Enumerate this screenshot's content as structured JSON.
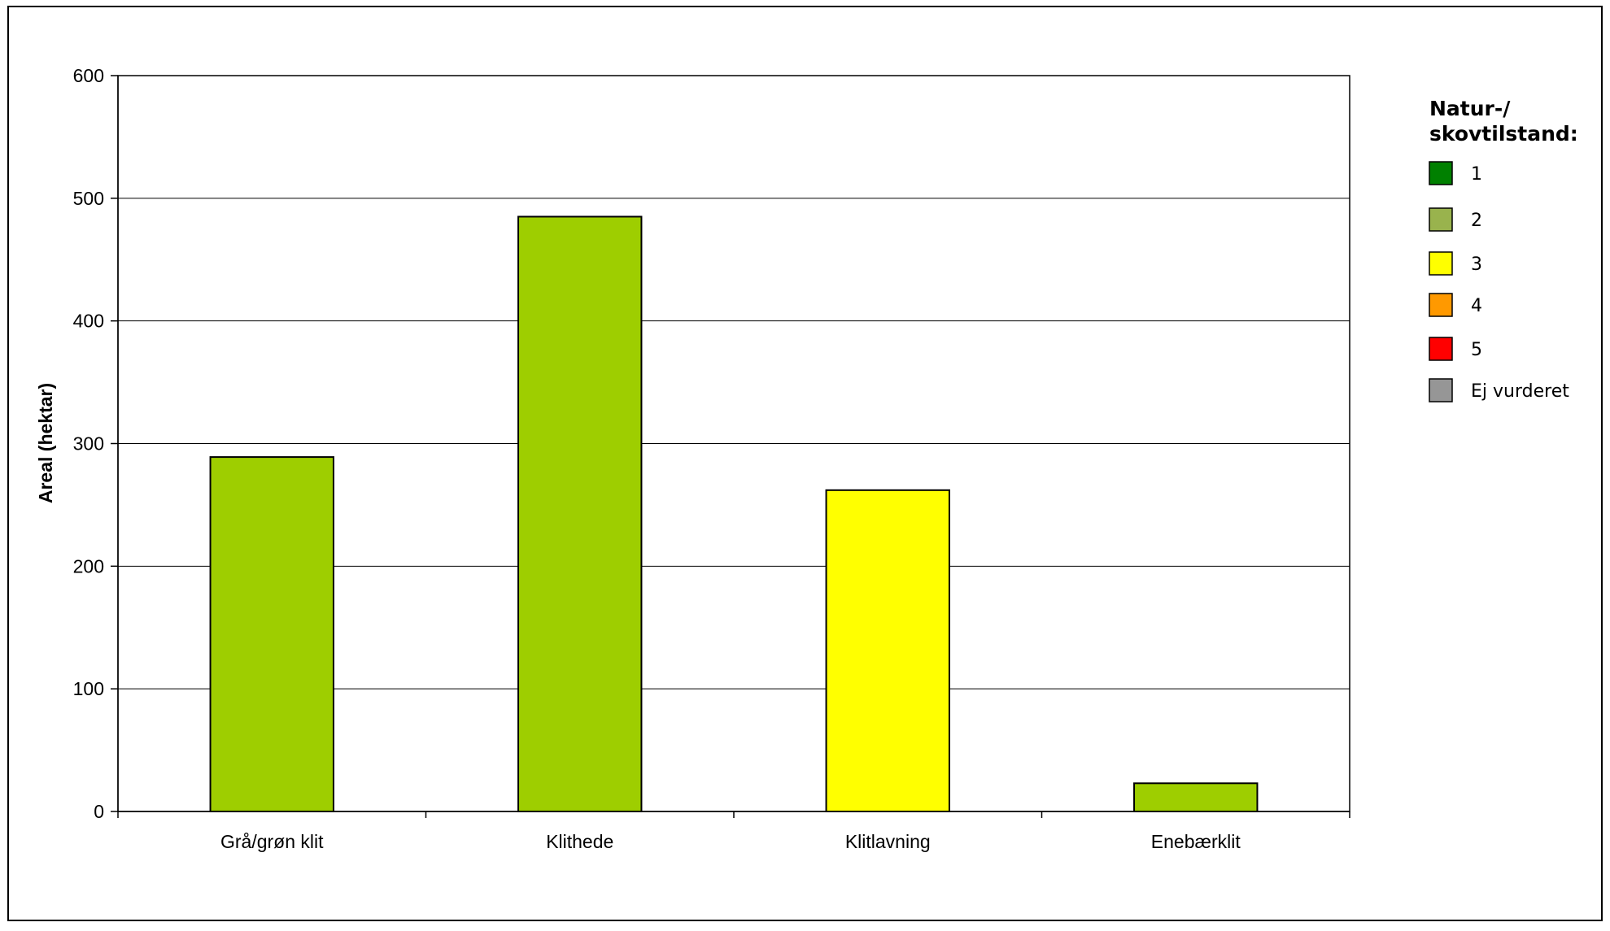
{
  "chart_data": {
    "type": "bar",
    "title": "",
    "xlabel": "",
    "ylabel": "Areal (hektar)",
    "ylim": [
      0,
      600
    ],
    "yticks": [
      0,
      100,
      200,
      300,
      400,
      500,
      600
    ],
    "grid": true,
    "categories": [
      "Grå/grøn klit",
      "Klithede",
      "Klitlavning",
      "Enebærklit"
    ],
    "values": [
      289,
      485,
      262,
      23
    ],
    "bar_colors": [
      "#9ECE00",
      "#9ECE00",
      "#FFFF00",
      "#9ECE00"
    ],
    "legend": {
      "placement": "right",
      "title_lines": [
        "Natur-/",
        "skovtilstand:"
      ],
      "items": [
        {
          "label": "1",
          "color": "#008000"
        },
        {
          "label": "2",
          "color": "#99B34D"
        },
        {
          "label": "3",
          "color": "#FFFF00"
        },
        {
          "label": "4",
          "color": "#FF9900"
        },
        {
          "label": "5",
          "color": "#FF0000"
        },
        {
          "label": "Ej vurderet",
          "color": "#969696"
        }
      ]
    }
  }
}
